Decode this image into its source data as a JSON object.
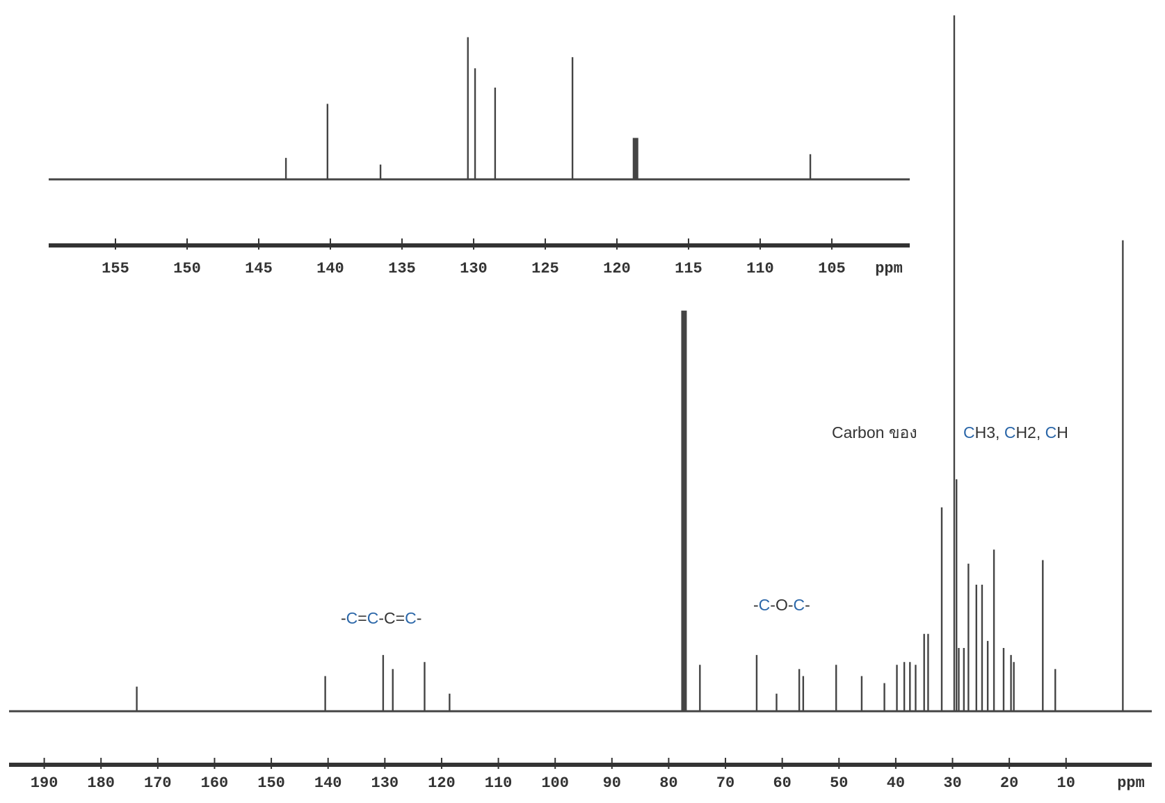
{
  "chart_data": [
    {
      "type": "spectrum",
      "xlabel": "ppm",
      "xlim": [
        159.66,
        99.56
      ],
      "ylim": [
        0,
        200
      ],
      "xticks": [
        155,
        150,
        145,
        140,
        135,
        130,
        125,
        120,
        115,
        110,
        105
      ],
      "color": "#444444",
      "x": [
        143.1,
        140.2,
        136.5,
        130.4,
        129.9,
        128.5,
        123.1,
        118.7,
        106.5
      ],
      "values": [
        29,
        102,
        20,
        192,
        150,
        124,
        165,
        56,
        34
      ]
    },
    {
      "type": "spectrum",
      "xlabel": "ppm",
      "xlim": [
        196.2,
        -5.1
      ],
      "ylim": [
        0,
        100
      ],
      "xticks": [
        190,
        180,
        170,
        160,
        150,
        140,
        130,
        120,
        110,
        100,
        90,
        80,
        70,
        60,
        50,
        40,
        30,
        20,
        10
      ],
      "color": "#444444",
      "x": [
        173.7,
        140.5,
        130.3,
        128.6,
        123.0,
        118.6,
        77.3,
        74.5,
        64.5,
        61.0,
        57.0,
        56.3,
        50.5,
        46.0,
        42.0,
        39.8,
        38.5,
        37.5,
        36.5,
        35.0,
        34.3,
        31.9,
        29.7,
        29.3,
        28.9,
        28.0,
        27.2,
        25.8,
        24.8,
        23.8,
        22.7,
        21.0,
        19.7,
        19.2,
        14.1,
        11.9,
        0
      ],
      "values": [
        3.5,
        5,
        8,
        6,
        7,
        2.5,
        57,
        6.6,
        8,
        2.5,
        6,
        5,
        6.6,
        5,
        4,
        6.6,
        7,
        7,
        6.6,
        11,
        11,
        29,
        99,
        33,
        9,
        9,
        21,
        18,
        18,
        10,
        23,
        9,
        8,
        7,
        21.5,
        6,
        67
      ],
      "annotations": [
        {
          "parts": [
            {
              "text": "-"
            },
            {
              "text": "C",
              "color": "#2a66a8"
            },
            {
              "text": "="
            },
            {
              "text": "C",
              "color": "#2a66a8"
            },
            {
              "text": "-C="
            },
            {
              "text": "C",
              "color": "#2a66a8"
            },
            {
              "text": "-"
            }
          ]
        },
        {
          "parts": [
            {
              "text": "-"
            },
            {
              "text": "C",
              "color": "#2a66a8"
            },
            {
              "text": "-O-"
            },
            {
              "text": "C",
              "color": "#2a66a8"
            },
            {
              "text": "-"
            }
          ]
        },
        {
          "parts": [
            {
              "text": "Carbon ของ"
            }
          ]
        },
        {
          "parts": [
            {
              "text": "C",
              "color": "#2a66a8"
            },
            {
              "text": "H3, "
            },
            {
              "text": "C",
              "color": "#2a66a8"
            },
            {
              "text": "H2, "
            },
            {
              "text": "C",
              "color": "#2a66a8"
            },
            {
              "text": "H"
            }
          ]
        }
      ]
    }
  ]
}
